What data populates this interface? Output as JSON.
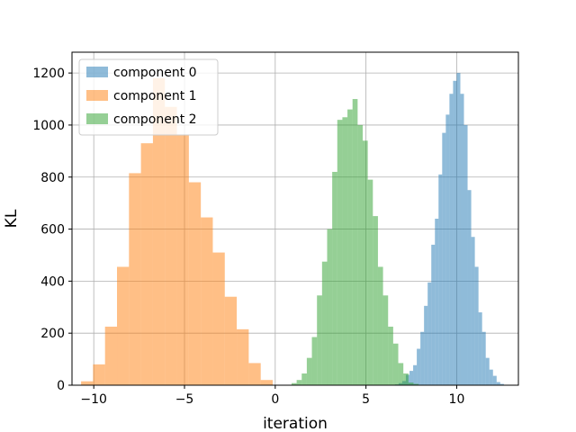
{
  "chart_data": {
    "type": "histogram",
    "xlabel": "iteration",
    "ylabel": "KL",
    "xlim": [
      -11.2,
      13.4
    ],
    "ylim": [
      0,
      1280
    ],
    "x_ticks": [
      -10,
      -5,
      0,
      5,
      10
    ],
    "y_ticks": [
      0,
      200,
      400,
      600,
      800,
      1000,
      1200
    ],
    "grid": true,
    "legend": {
      "position": "top-left"
    },
    "series": [
      {
        "name": "component 0",
        "color": "#1f77b4",
        "alpha": 0.5,
        "bin_start": 6.6,
        "bin_width": 0.2,
        "counts": [
          3,
          8,
          16,
          40,
          55,
          77,
          140,
          205,
          305,
          395,
          540,
          640,
          810,
          970,
          1040,
          1120,
          1170,
          1200,
          1120,
          1000,
          750,
          570,
          455,
          280,
          205,
          105,
          60,
          36,
          12,
          5
        ]
      },
      {
        "name": "component 1",
        "color": "#ff7f0e",
        "alpha": 0.5,
        "bin_start": -10.7,
        "bin_width": 0.66,
        "counts": [
          15,
          80,
          225,
          455,
          815,
          930,
          1180,
          1070,
          960,
          780,
          645,
          510,
          340,
          215,
          85,
          20
        ]
      },
      {
        "name": "component 2",
        "color": "#2ca02c",
        "alpha": 0.5,
        "bin_start": 0.9,
        "bin_width": 0.28,
        "counts": [
          8,
          20,
          45,
          105,
          185,
          345,
          475,
          600,
          820,
          1020,
          1030,
          1060,
          1100,
          1000,
          940,
          790,
          650,
          455,
          345,
          225,
          160,
          85,
          45,
          10,
          5
        ]
      }
    ]
  }
}
